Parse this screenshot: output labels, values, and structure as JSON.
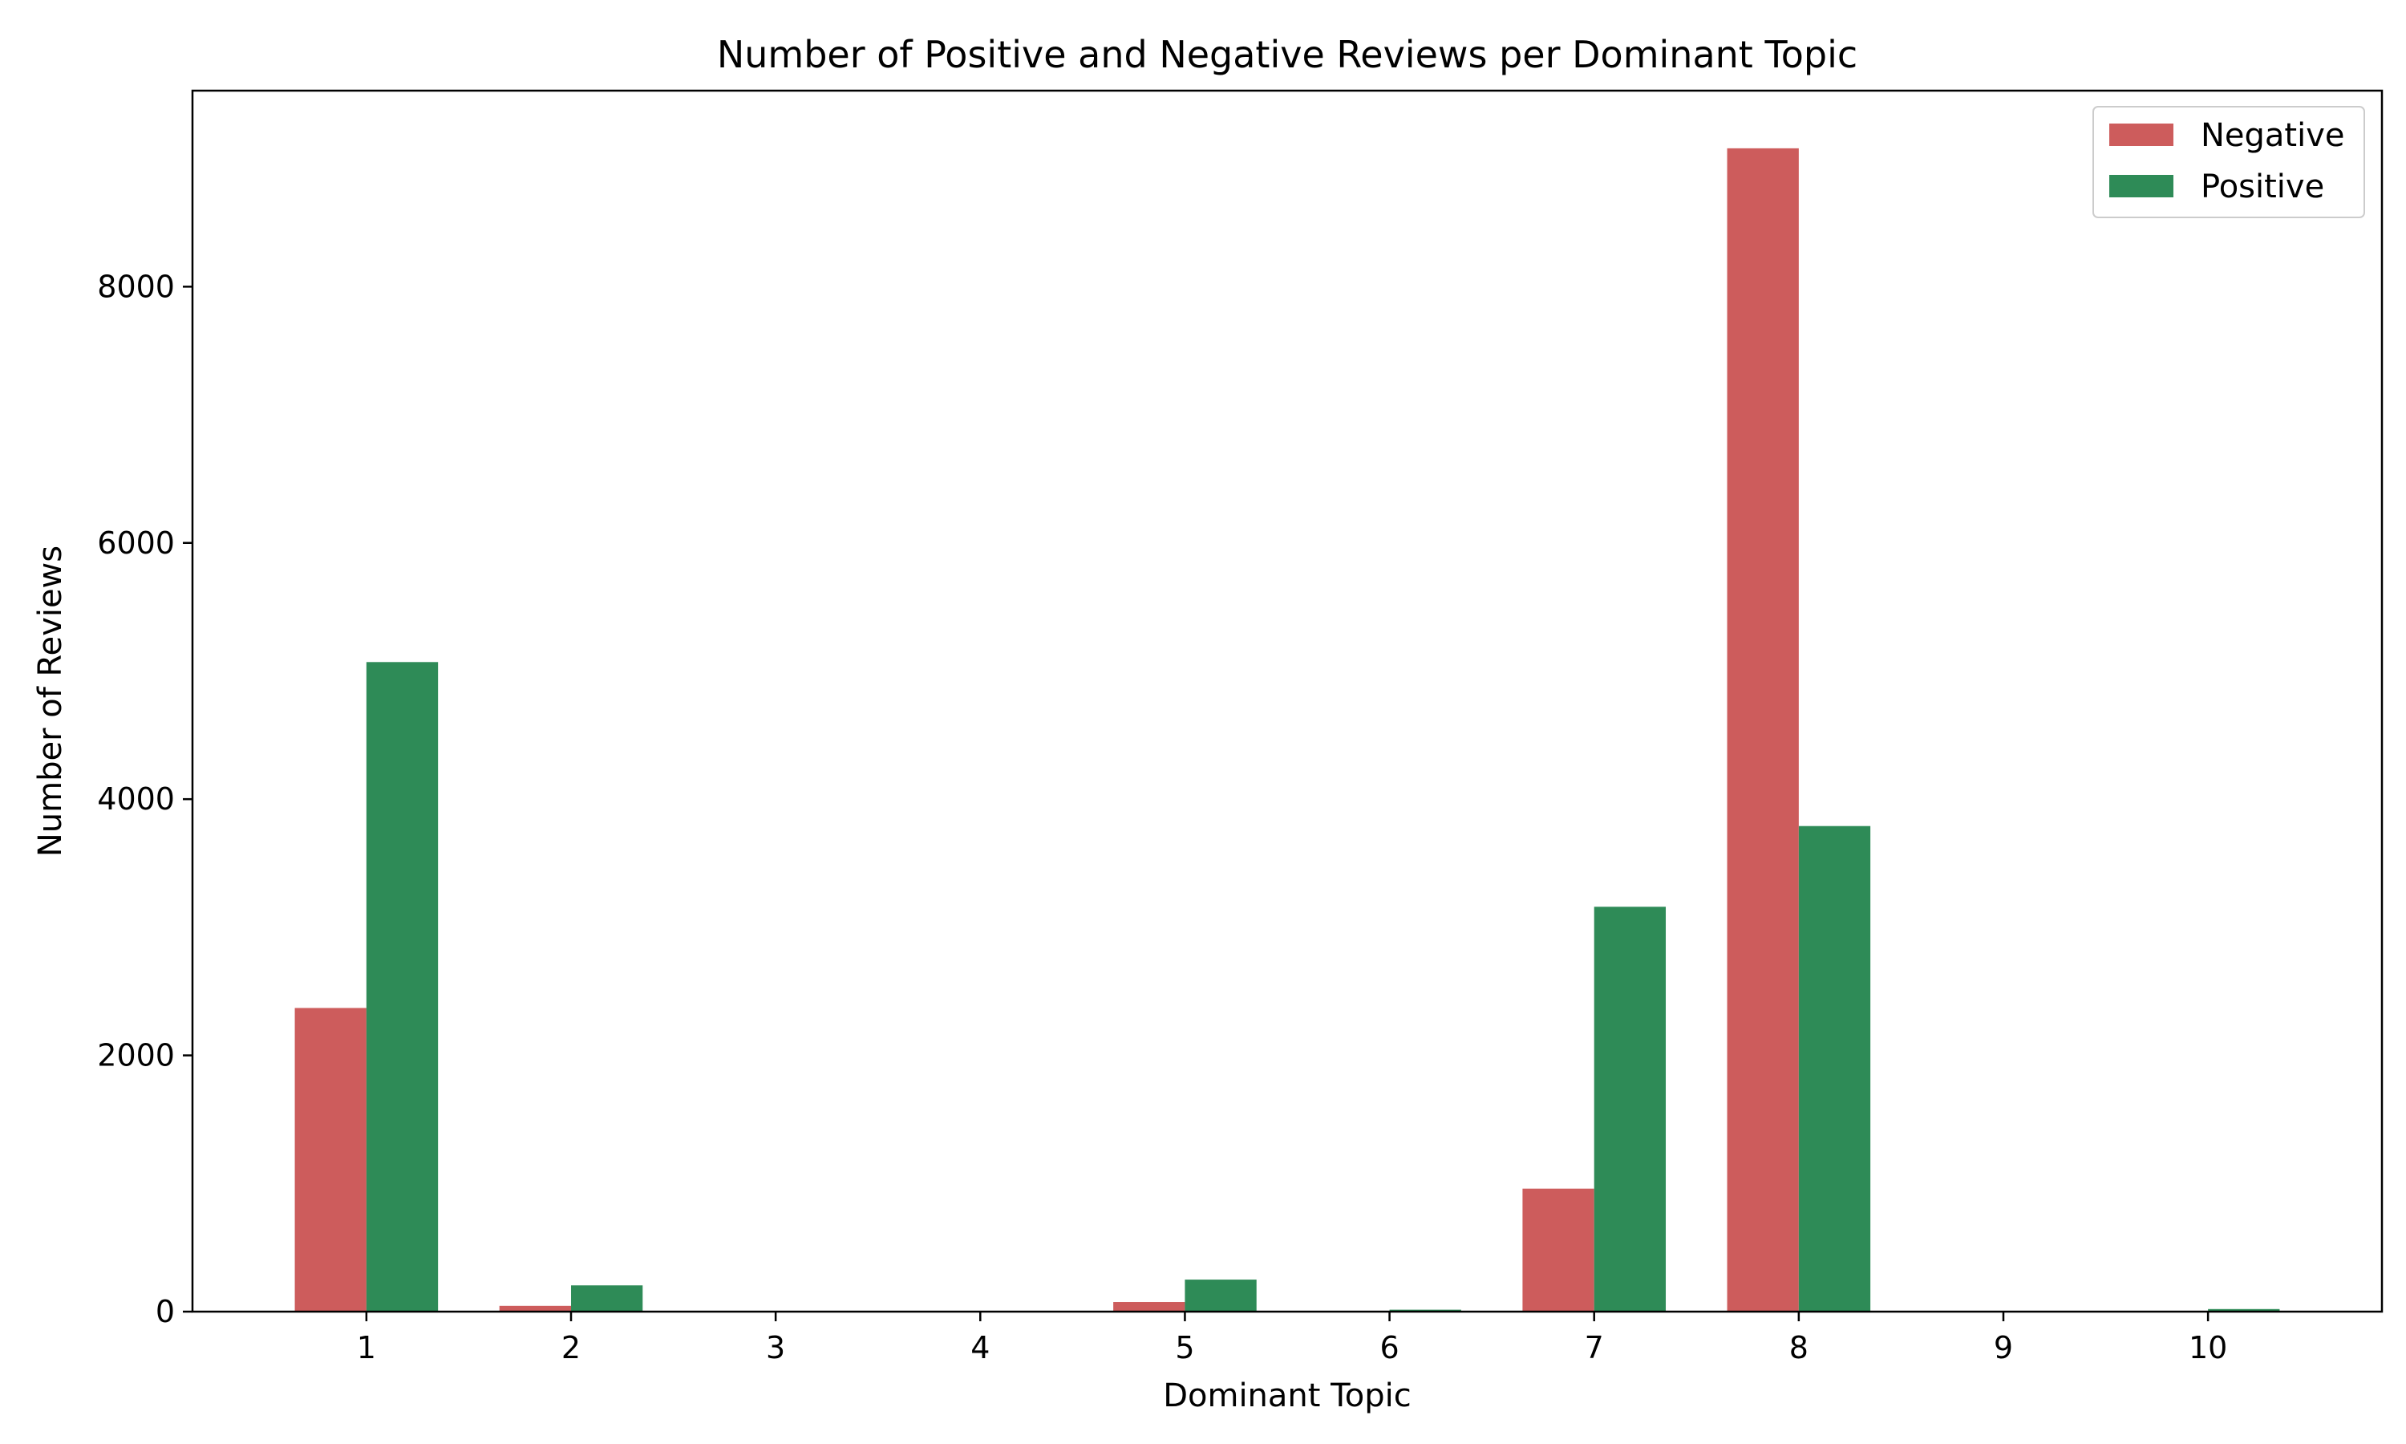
{
  "colors": {
    "negative": "#cd5c5c",
    "positive": "#2e8b57"
  },
  "chart_data": {
    "type": "bar",
    "title": "Number of Positive and Negative Reviews per Dominant Topic",
    "xlabel": "Dominant Topic",
    "ylabel": "Number of Reviews",
    "categories": [
      "1",
      "2",
      "3",
      "4",
      "5",
      "6",
      "7",
      "8",
      "9",
      "10"
    ],
    "series": [
      {
        "name": "Negative",
        "color": "#cd5c5c",
        "values": [
          2370,
          45,
          0,
          0,
          75,
          0,
          960,
          9080,
          0,
          0
        ]
      },
      {
        "name": "Positive",
        "color": "#2e8b57",
        "values": [
          5070,
          205,
          3,
          5,
          250,
          15,
          3160,
          3790,
          5,
          20
        ]
      }
    ],
    "ylim": [
      0,
      9530
    ],
    "yticks": [
      0,
      2000,
      4000,
      6000,
      8000
    ],
    "grid": false,
    "legend": "top-right"
  }
}
